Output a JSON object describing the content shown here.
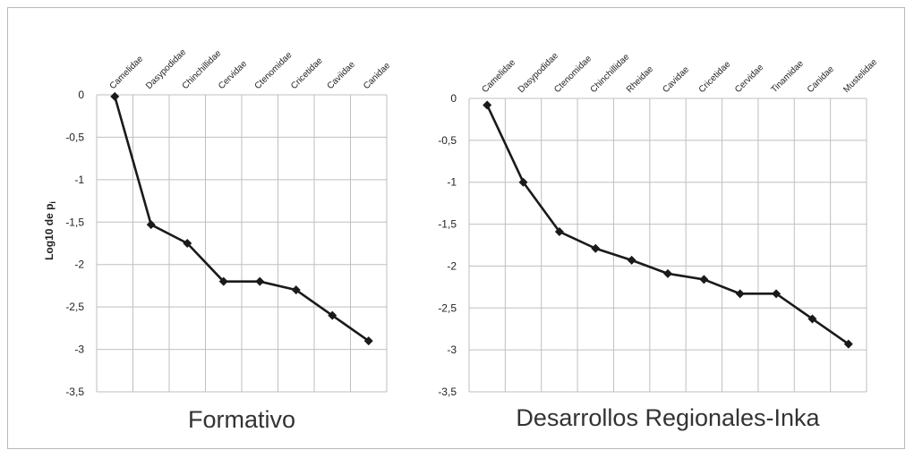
{
  "chart_data": [
    {
      "type": "line",
      "title": "Formativo",
      "ylabel": "Log10 de p",
      "ylabel_subscript": "i",
      "categories": [
        "Camelidae",
        "Dasypodidae",
        "Chinchillidae",
        "Cervidae",
        "Ctenomidae",
        "Cricetidae",
        "Caviidae",
        "Canidae"
      ],
      "values": [
        -0.02,
        -1.53,
        -1.75,
        -2.2,
        -2.2,
        -2.3,
        -2.6,
        -2.9
      ],
      "ylim": [
        -3.5,
        0
      ],
      "yticks": [
        "0",
        "-0,5",
        "-1",
        "-1,5",
        "-2",
        "-2,5",
        "-3",
        "-3,5"
      ],
      "grid": true,
      "marker": "diamond",
      "color": "#1a1a1a"
    },
    {
      "type": "line",
      "title": "Desarrollos Regionales-Inka",
      "ylabel": "",
      "categories": [
        "Camelidae",
        "Dasypodidae",
        "Ctenomidae",
        "Chinchillidae",
        "Rheidae",
        "Cavidae",
        "Cricetidae",
        "Cervidae",
        "Tinamidae",
        "Canidae",
        "Mustelidae"
      ],
      "values": [
        -0.08,
        -1.0,
        -1.59,
        -1.79,
        -1.93,
        -2.09,
        -2.16,
        -2.33,
        -2.33,
        -2.63,
        -2.93
      ],
      "ylim": [
        -3.5,
        0
      ],
      "yticks": [
        "0",
        "-0,5",
        "-1",
        "-1,5",
        "-2",
        "-2,5",
        "-3",
        "-3,5"
      ],
      "grid": true,
      "marker": "diamond",
      "color": "#1a1a1a"
    }
  ]
}
